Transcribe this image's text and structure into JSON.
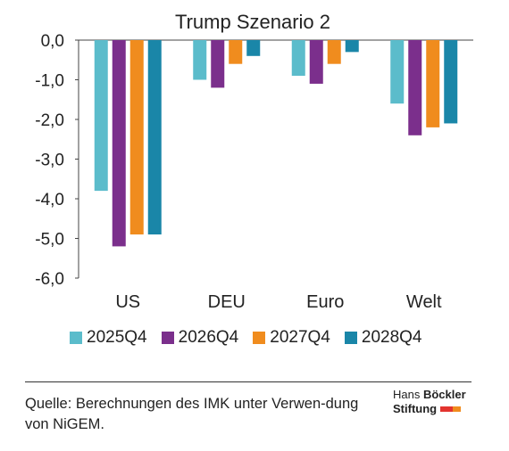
{
  "chart_data": {
    "type": "bar",
    "title": "Trump Szenario 2",
    "categories": [
      "US",
      "DEU",
      "Euro",
      "Welt"
    ],
    "series": [
      {
        "name": "2025Q4",
        "color": "#5bbccb",
        "values": [
          -3.8,
          -1.0,
          -0.9,
          -1.6
        ]
      },
      {
        "name": "2026Q4",
        "color": "#7b2f8c",
        "values": [
          -5.2,
          -1.2,
          -1.1,
          -2.4
        ]
      },
      {
        "name": "2027Q4",
        "color": "#f08c1e",
        "values": [
          -4.9,
          -0.6,
          -0.6,
          -2.2
        ]
      },
      {
        "name": "2028Q4",
        "color": "#1a86a8",
        "values": [
          -4.9,
          -0.4,
          -0.3,
          -2.1
        ]
      }
    ],
    "ylim": [
      -6.0,
      0.0
    ],
    "yticks": [
      "0,0",
      "-1,0",
      "-2,0",
      "-3,0",
      "-4,0",
      "-5,0",
      "-6,0"
    ],
    "grid": false,
    "legend_position": "bottom"
  },
  "footer": {
    "source": "Quelle: Berechnungen des IMK unter Verwen-dung von NiGEM.",
    "logo_line1_a": "Hans ",
    "logo_line1_b": "Böckler",
    "logo_line2": "Stiftung",
    "logo_colors": [
      "#e3342f",
      "#f08c1e"
    ]
  }
}
